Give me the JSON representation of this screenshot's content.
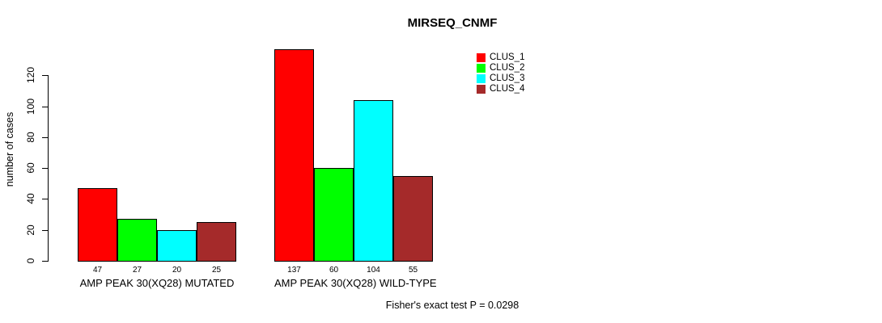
{
  "title": "MIRSEQ_CNMF",
  "colors": {
    "background": "#FFFFFF",
    "axis": "#000000",
    "clus_1": "#FF0000",
    "clus_2": "#00FF00",
    "clus_3": "#00FFFF",
    "clus_4": "#A52A2A"
  },
  "chart_data": {
    "type": "bar",
    "title": "MIRSEQ_CNMF",
    "xlabel": "",
    "ylabel": "number of cases",
    "yticks": [
      0,
      20,
      40,
      60,
      80,
      100,
      120
    ],
    "ylim": [
      0,
      140
    ],
    "grid": false,
    "legend_position": "top-right",
    "series": [
      {
        "name": "CLUS_1",
        "color": "#FF0000"
      },
      {
        "name": "CLUS_2",
        "color": "#00FF00"
      },
      {
        "name": "CLUS_3",
        "color": "#00FFFF"
      },
      {
        "name": "CLUS_4",
        "color": "#A52A2A"
      }
    ],
    "categories": [
      "AMP PEAK 30(XQ28) MUTATED",
      "AMP PEAK 30(XQ28) WILD-TYPE"
    ],
    "groups": [
      {
        "label": "AMP PEAK 30(XQ28) MUTATED",
        "values": [
          47,
          27,
          20,
          25
        ]
      },
      {
        "label": "AMP PEAK 30(XQ28) WILD-TYPE",
        "values": [
          137,
          60,
          104,
          55
        ]
      }
    ],
    "annotation": "Fisher's exact test P = 0.0298"
  }
}
